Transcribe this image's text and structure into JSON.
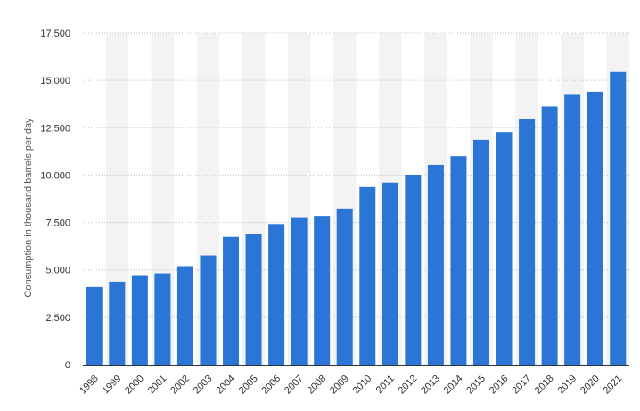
{
  "chart_data": {
    "type": "bar",
    "title": "",
    "xlabel": "",
    "ylabel": "Consumption in thousand barrels per day",
    "categories": [
      "1998",
      "1999",
      "2000",
      "2001",
      "2002",
      "2003",
      "2004",
      "2005",
      "2006",
      "2007",
      "2008",
      "2009",
      "2010",
      "2011",
      "2012",
      "2013",
      "2014",
      "2015",
      "2016",
      "2017",
      "2018",
      "2019",
      "2020",
      "2021"
    ],
    "values": [
      4100,
      4380,
      4680,
      4820,
      5200,
      5760,
      6740,
      6890,
      7420,
      7780,
      7850,
      8240,
      9370,
      9610,
      10020,
      10540,
      11000,
      11860,
      12270,
      12960,
      13620,
      14280,
      14400,
      15440
    ],
    "ylim": [
      0,
      17500
    ],
    "yticks": [
      0,
      2500,
      5000,
      7500,
      10000,
      12500,
      15000,
      17500
    ],
    "ytick_labels": [
      "0",
      "2,500",
      "5,000",
      "7,500",
      "10,000",
      "12,500",
      "15,000",
      "17,500"
    ],
    "grid": true,
    "legend": "none",
    "colors": {
      "bar": "#2a75d6",
      "grid": "#bdbdbd",
      "band": "#f3f3f3",
      "axis": "#333333"
    }
  }
}
